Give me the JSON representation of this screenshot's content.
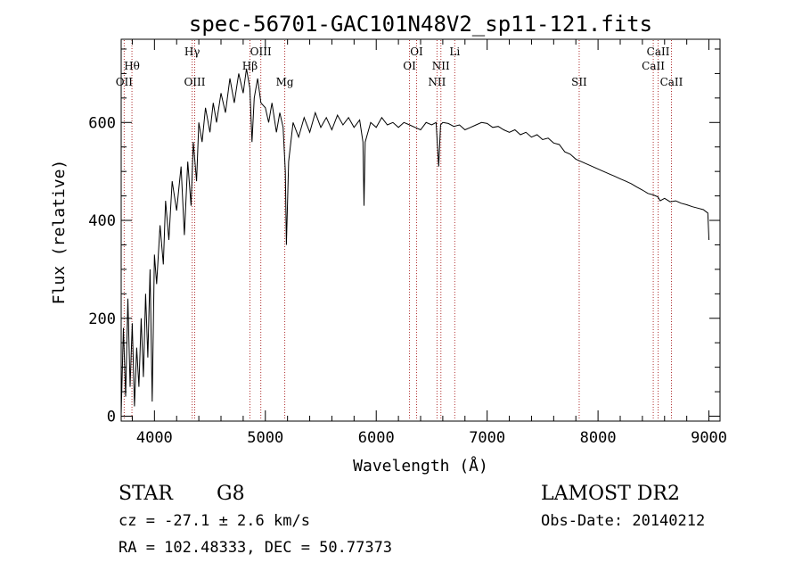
{
  "chart_data": {
    "type": "line",
    "title": "spec-56701-GAC101N48V2_sp11-121.fits",
    "xlabel": "Wavelength (Å)",
    "ylabel": "Flux (relative)",
    "xlim": [
      3700,
      9100
    ],
    "ylim": [
      -10,
      770
    ],
    "x_ticks": [
      4000,
      5000,
      6000,
      7000,
      8000,
      9000
    ],
    "y_ticks": [
      0,
      200,
      400,
      600
    ],
    "x_tick_labels": [
      "4000",
      "5000",
      "6000",
      "7000",
      "8000",
      "9000"
    ],
    "y_tick_labels": [
      "0",
      "200",
      "400",
      "600"
    ],
    "grid": false,
    "line_color": "#000000",
    "marker_color": "#b03030",
    "series_points": [
      [
        3700,
        5
      ],
      [
        3720,
        180
      ],
      [
        3740,
        40
      ],
      [
        3760,
        240
      ],
      [
        3780,
        60
      ],
      [
        3800,
        190
      ],
      [
        3820,
        20
      ],
      [
        3840,
        140
      ],
      [
        3860,
        60
      ],
      [
        3880,
        200
      ],
      [
        3900,
        80
      ],
      [
        3920,
        250
      ],
      [
        3940,
        120
      ],
      [
        3960,
        300
      ],
      [
        3980,
        30
      ],
      [
        4000,
        330
      ],
      [
        4020,
        270
      ],
      [
        4050,
        390
      ],
      [
        4080,
        310
      ],
      [
        4100,
        440
      ],
      [
        4130,
        360
      ],
      [
        4160,
        480
      ],
      [
        4200,
        420
      ],
      [
        4240,
        510
      ],
      [
        4270,
        370
      ],
      [
        4300,
        520
      ],
      [
        4330,
        430
      ],
      [
        4350,
        560
      ],
      [
        4380,
        480
      ],
      [
        4400,
        600
      ],
      [
        4430,
        560
      ],
      [
        4460,
        630
      ],
      [
        4500,
        580
      ],
      [
        4530,
        640
      ],
      [
        4560,
        600
      ],
      [
        4600,
        660
      ],
      [
        4640,
        620
      ],
      [
        4680,
        690
      ],
      [
        4720,
        640
      ],
      [
        4760,
        700
      ],
      [
        4800,
        660
      ],
      [
        4830,
        710
      ],
      [
        4860,
        670
      ],
      [
        4880,
        560
      ],
      [
        4900,
        650
      ],
      [
        4930,
        690
      ],
      [
        4960,
        640
      ],
      [
        5000,
        630
      ],
      [
        5030,
        600
      ],
      [
        5060,
        640
      ],
      [
        5100,
        580
      ],
      [
        5130,
        620
      ],
      [
        5160,
        590
      ],
      [
        5180,
        500
      ],
      [
        5190,
        350
      ],
      [
        5210,
        520
      ],
      [
        5250,
        600
      ],
      [
        5300,
        570
      ],
      [
        5350,
        610
      ],
      [
        5400,
        580
      ],
      [
        5450,
        620
      ],
      [
        5500,
        590
      ],
      [
        5550,
        610
      ],
      [
        5600,
        585
      ],
      [
        5650,
        615
      ],
      [
        5700,
        595
      ],
      [
        5750,
        610
      ],
      [
        5800,
        590
      ],
      [
        5850,
        605
      ],
      [
        5880,
        560
      ],
      [
        5890,
        430
      ],
      [
        5900,
        560
      ],
      [
        5950,
        600
      ],
      [
        6000,
        590
      ],
      [
        6050,
        610
      ],
      [
        6100,
        595
      ],
      [
        6150,
        600
      ],
      [
        6200,
        590
      ],
      [
        6250,
        600
      ],
      [
        6300,
        595
      ],
      [
        6350,
        590
      ],
      [
        6400,
        585
      ],
      [
        6450,
        600
      ],
      [
        6500,
        595
      ],
      [
        6540,
        600
      ],
      [
        6563,
        510
      ],
      [
        6580,
        595
      ],
      [
        6600,
        600
      ],
      [
        6650,
        598
      ],
      [
        6700,
        592
      ],
      [
        6750,
        595
      ],
      [
        6800,
        585
      ],
      [
        6850,
        590
      ],
      [
        6900,
        595
      ],
      [
        6950,
        600
      ],
      [
        7000,
        598
      ],
      [
        7050,
        590
      ],
      [
        7100,
        592
      ],
      [
        7150,
        585
      ],
      [
        7200,
        580
      ],
      [
        7250,
        585
      ],
      [
        7300,
        575
      ],
      [
        7350,
        580
      ],
      [
        7400,
        570
      ],
      [
        7450,
        575
      ],
      [
        7500,
        565
      ],
      [
        7550,
        568
      ],
      [
        7600,
        558
      ],
      [
        7650,
        555
      ],
      [
        7700,
        540
      ],
      [
        7750,
        535
      ],
      [
        7800,
        525
      ],
      [
        7850,
        520
      ],
      [
        7900,
        515
      ],
      [
        7950,
        510
      ],
      [
        8000,
        505
      ],
      [
        8050,
        500
      ],
      [
        8100,
        495
      ],
      [
        8150,
        490
      ],
      [
        8200,
        485
      ],
      [
        8250,
        480
      ],
      [
        8300,
        475
      ],
      [
        8350,
        468
      ],
      [
        8400,
        462
      ],
      [
        8450,
        455
      ],
      [
        8500,
        452
      ],
      [
        8540,
        448
      ],
      [
        8560,
        440
      ],
      [
        8600,
        445
      ],
      [
        8650,
        438
      ],
      [
        8700,
        440
      ],
      [
        8750,
        435
      ],
      [
        8800,
        432
      ],
      [
        8850,
        428
      ],
      [
        8900,
        425
      ],
      [
        8950,
        422
      ],
      [
        8990,
        415
      ],
      [
        9000,
        360
      ]
    ],
    "annotations": [
      {
        "label": "OII",
        "x": 3727,
        "row": 3
      },
      {
        "label": "Hθ",
        "x": 3797,
        "row": 2
      },
      {
        "label": "Hγ",
        "x": 4340,
        "row": 1
      },
      {
        "label": "OIII",
        "x": 4363,
        "row": 3
      },
      {
        "label": "OIII",
        "x": 4959,
        "row": 1
      },
      {
        "label": "Hβ",
        "x": 4861,
        "row": 2
      },
      {
        "label": "Mg",
        "x": 5175,
        "row": 3
      },
      {
        "label": "OI",
        "x": 6364,
        "row": 1
      },
      {
        "label": "OI",
        "x": 6300,
        "row": 2
      },
      {
        "label": "NII",
        "x": 6583,
        "row": 2
      },
      {
        "label": "NII",
        "x": 6548,
        "row": 3
      },
      {
        "label": "Li",
        "x": 6708,
        "row": 1
      },
      {
        "label": "SII",
        "x": 7830,
        "row": 3
      },
      {
        "label": "CaII",
        "x": 8542,
        "row": 1
      },
      {
        "label": "CaII",
        "x": 8498,
        "row": 2
      },
      {
        "label": "CaII",
        "x": 8662,
        "row": 3
      }
    ]
  },
  "footer": {
    "class_label": "STAR",
    "subclass": "G8",
    "survey": "LAMOST DR2",
    "cz": "cz = -27.1 ± 2.6 km/s",
    "obs_date": "Obs-Date: 20140212",
    "coords": "RA = 102.48333, DEC =  50.77373"
  }
}
